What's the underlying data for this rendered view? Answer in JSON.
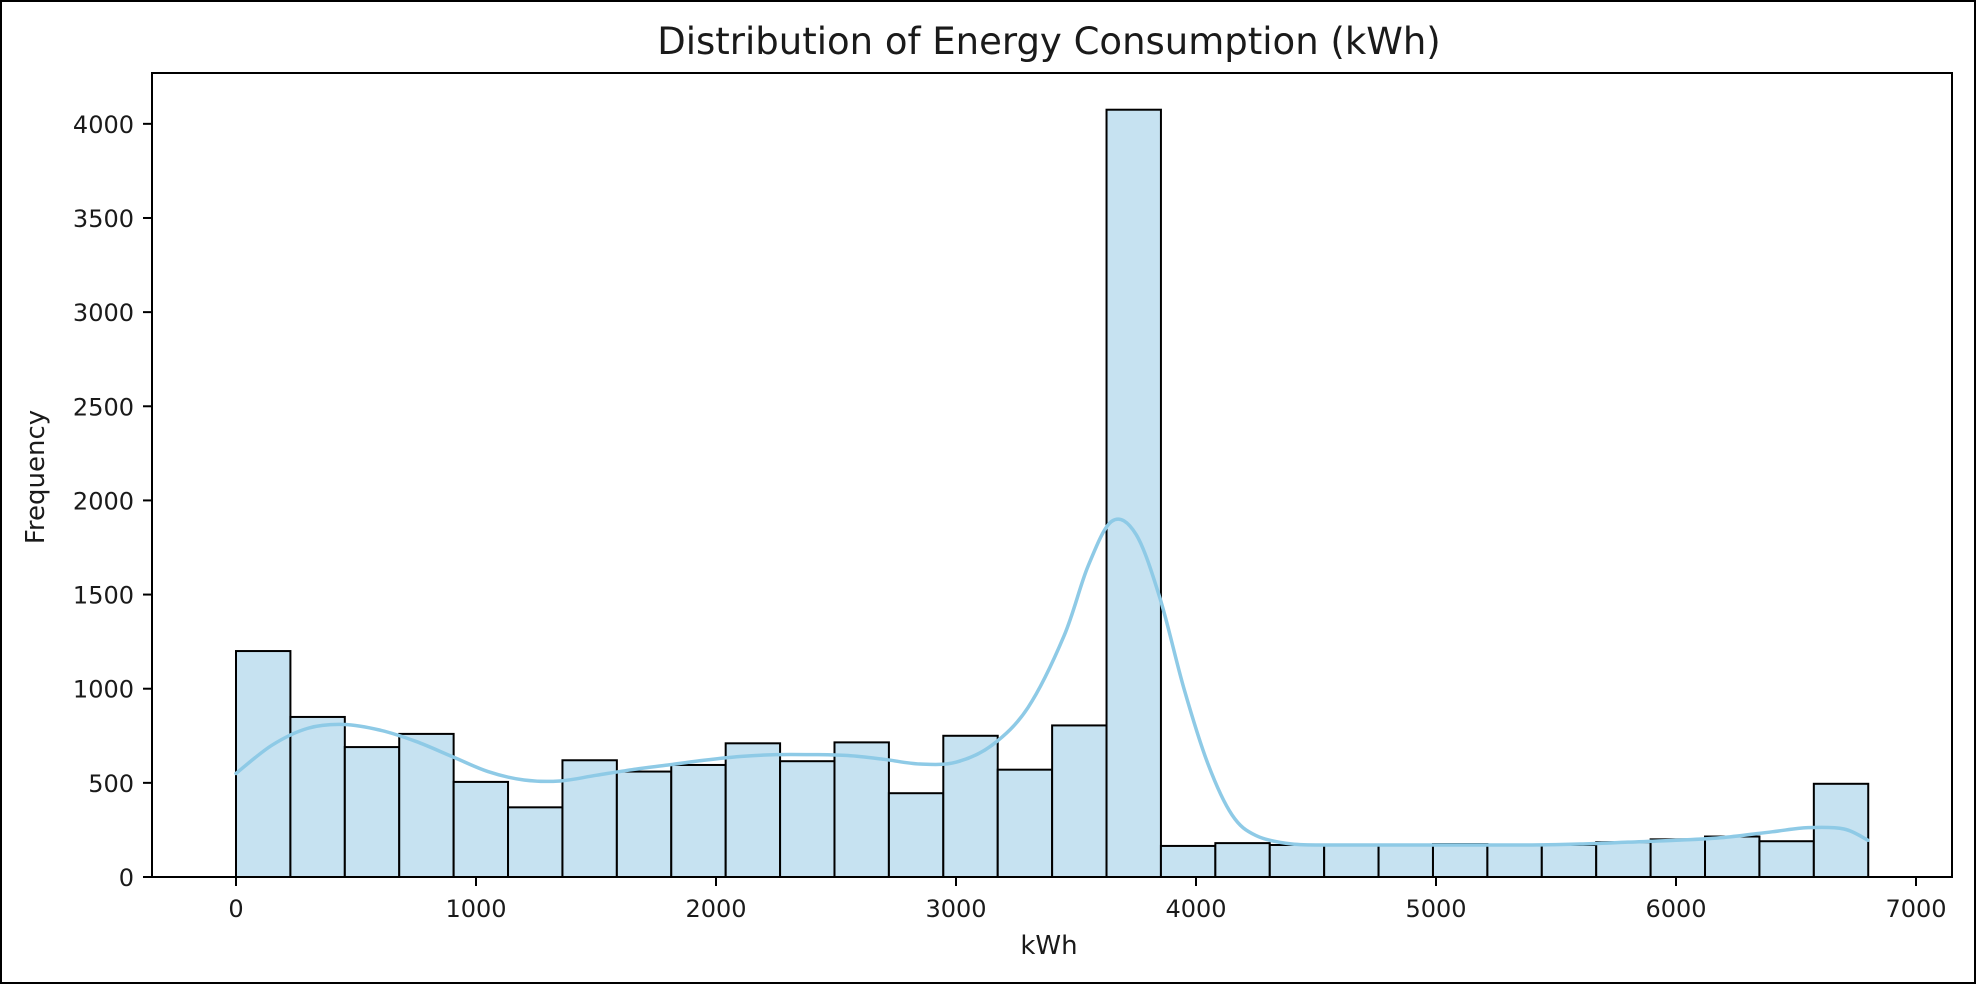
{
  "chart_data": {
    "type": "bar",
    "subtype": "histogram",
    "title": "Distribution of Energy Consumption (kWh)",
    "xlabel": "kWh",
    "ylabel": "Frequency",
    "xlim": [
      -350,
      7150
    ],
    "ylim": [
      0,
      4270
    ],
    "xticks": [
      0,
      1000,
      2000,
      3000,
      4000,
      5000,
      6000,
      7000
    ],
    "yticks": [
      0,
      500,
      1000,
      1500,
      2000,
      2500,
      3000,
      3500,
      4000
    ],
    "grid": false,
    "legend": "none",
    "bin_start": 0,
    "bin_width": 226.7,
    "values": [
      1200,
      850,
      690,
      760,
      505,
      370,
      620,
      560,
      595,
      710,
      615,
      715,
      445,
      750,
      570,
      805,
      4075,
      165,
      180,
      170,
      170,
      170,
      175,
      170,
      170,
      185,
      200,
      215,
      190,
      495
    ],
    "kde": {
      "x": [
        0,
        150,
        300,
        450,
        600,
        750,
        900,
        1050,
        1200,
        1350,
        1500,
        1650,
        1800,
        1950,
        2100,
        2250,
        2400,
        2550,
        2700,
        2850,
        3000,
        3150,
        3300,
        3450,
        3550,
        3650,
        3750,
        3850,
        3950,
        4050,
        4150,
        4250,
        4400,
        4600,
        4800,
        5000,
        5200,
        5400,
        5600,
        5800,
        6000,
        6200,
        6400,
        6550,
        6700,
        6800
      ],
      "y": [
        550,
        700,
        790,
        810,
        780,
        720,
        640,
        560,
        515,
        510,
        540,
        570,
        595,
        620,
        640,
        650,
        650,
        645,
        625,
        600,
        610,
        700,
        900,
        1280,
        1650,
        1890,
        1820,
        1480,
        1000,
        600,
        330,
        220,
        175,
        170,
        170,
        170,
        170,
        170,
        175,
        185,
        195,
        210,
        240,
        262,
        255,
        195
      ]
    },
    "colors": {
      "bar_fill": "#c6e2f1",
      "bar_edge": "#000000",
      "kde_line": "#8ecae6"
    }
  }
}
